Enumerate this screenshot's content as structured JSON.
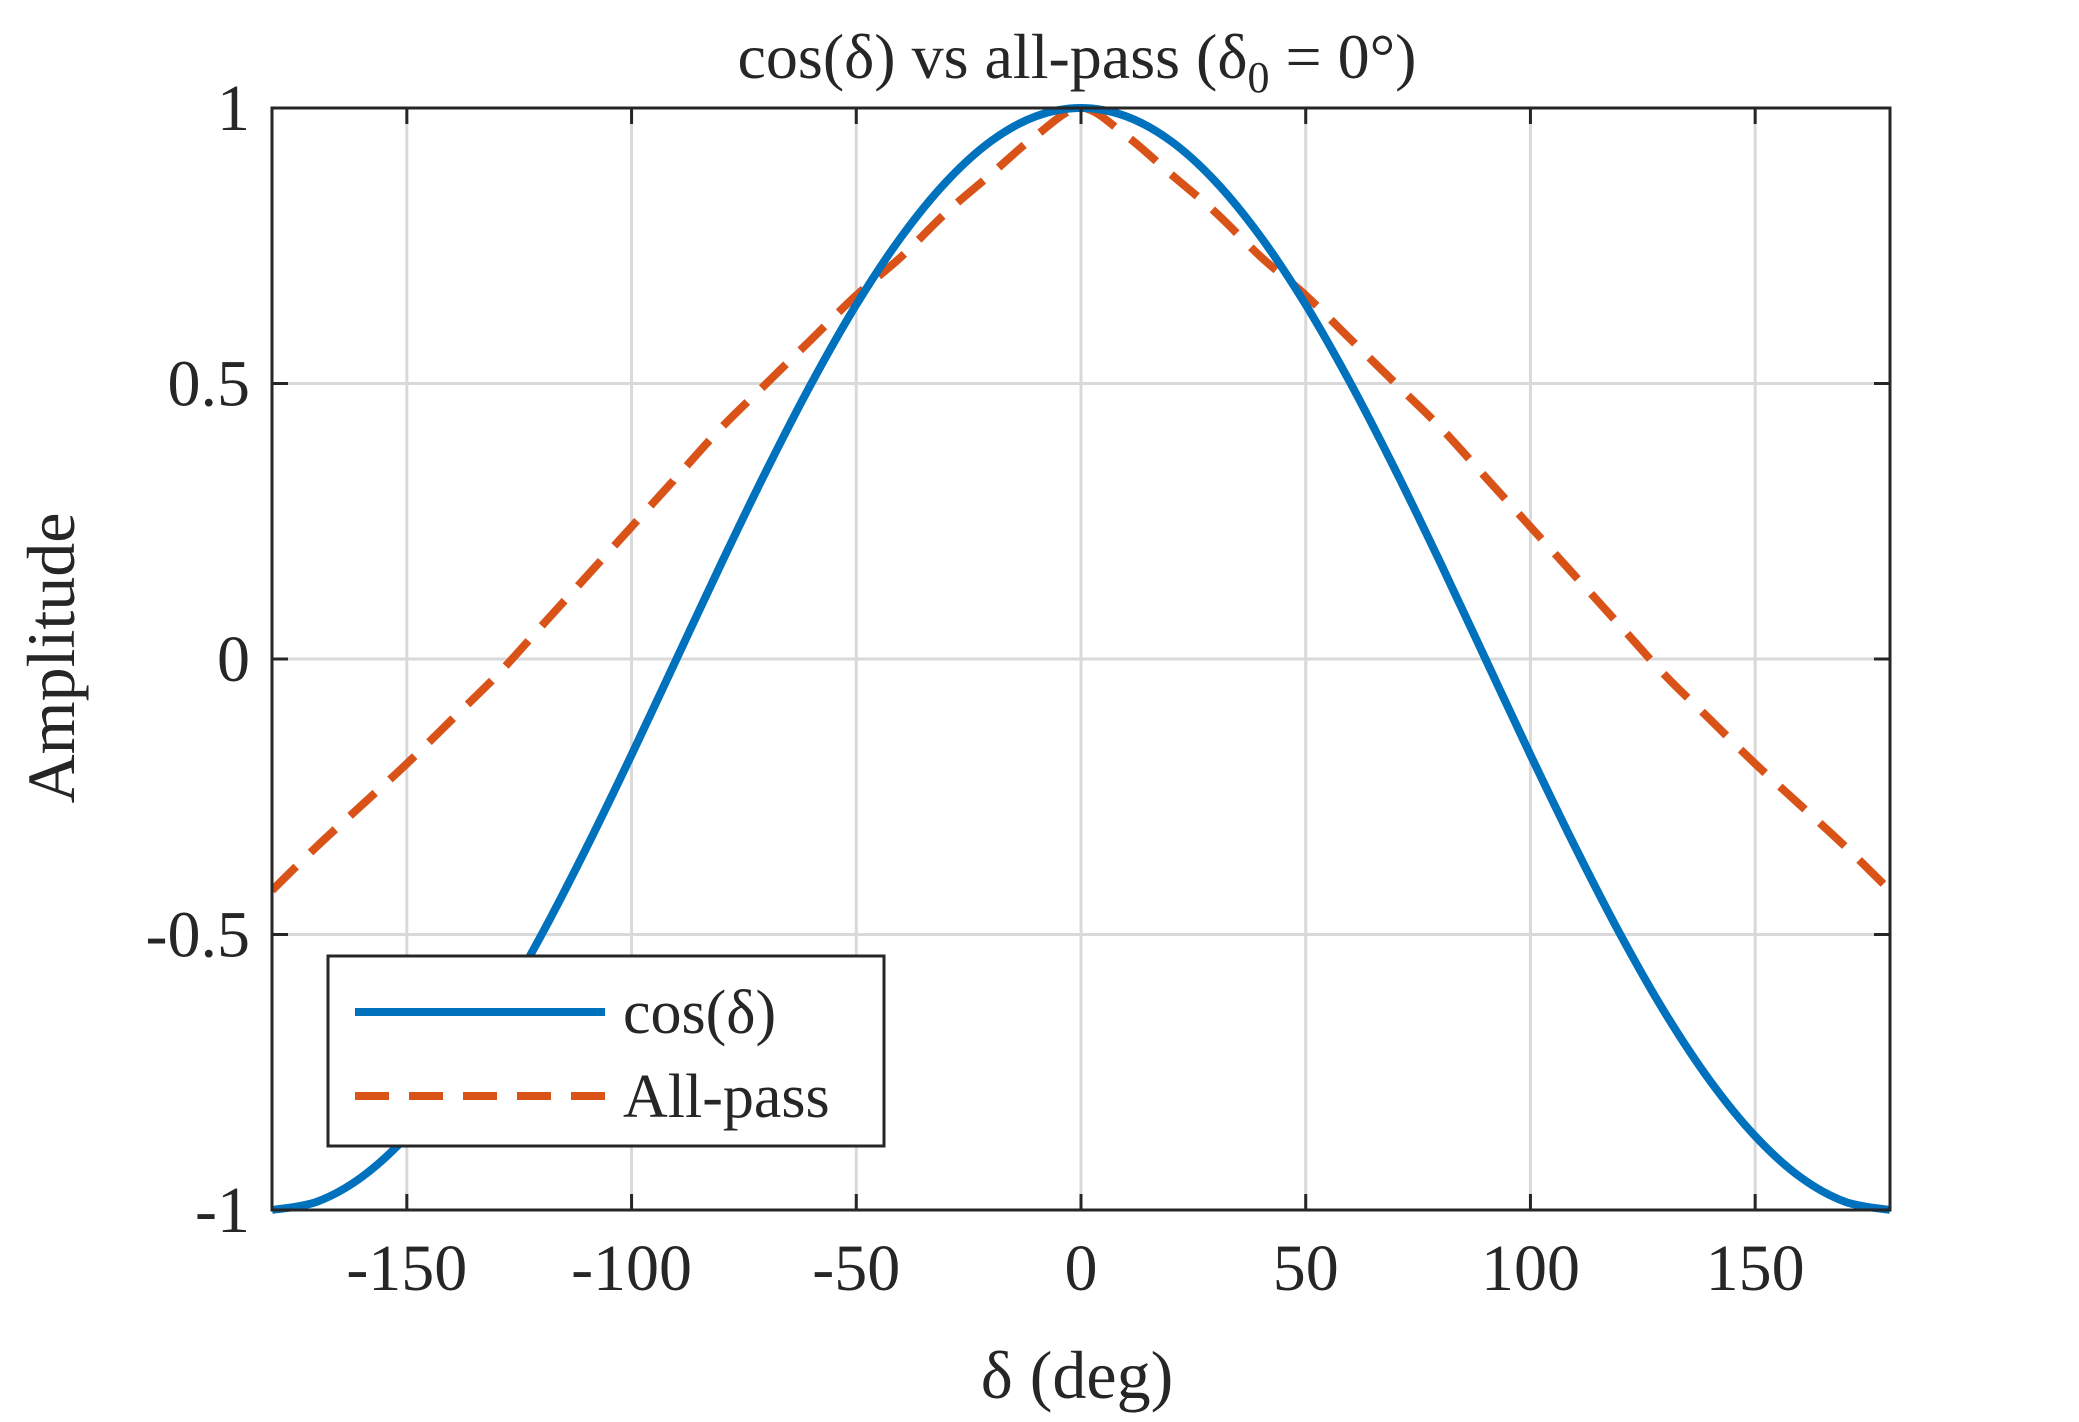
{
  "chart_data": {
    "type": "line",
    "title": "cos(δ) vs all-pass (δ₀ = 0°)",
    "title_parts": {
      "main": "cos(δ) vs all-pass (δ",
      "subscript": "0",
      "suffix": " = 0°)"
    },
    "xlabel": "δ (deg)",
    "ylabel": "Amplitude",
    "xlim": [
      -180,
      180
    ],
    "ylim": [
      -1,
      1
    ],
    "xticks": [
      -150,
      -100,
      -50,
      0,
      50,
      100,
      150
    ],
    "xtick_labels": [
      "-150",
      "-100",
      "-50",
      "0",
      "50",
      "100",
      "150"
    ],
    "yticks": [
      -1,
      -0.5,
      0,
      0.5,
      1
    ],
    "ytick_labels": [
      "-1",
      "-0.5",
      "0",
      "0.5",
      "1"
    ],
    "grid": true,
    "legend_position": "bottom-left",
    "x": [
      -180,
      -170,
      -160,
      -150,
      -140,
      -130,
      -120,
      -110,
      -100,
      -90,
      -80,
      -70,
      -60,
      -50,
      -40,
      -30,
      -20,
      -10,
      0,
      10,
      20,
      30,
      40,
      50,
      60,
      70,
      80,
      90,
      100,
      110,
      120,
      130,
      140,
      150,
      160,
      170,
      180
    ],
    "series": [
      {
        "name": "cos(δ)",
        "color": "#0072BD",
        "style": "solid",
        "values": [
          -1.0,
          -0.985,
          -0.94,
          -0.866,
          -0.766,
          -0.643,
          -0.5,
          -0.342,
          -0.174,
          0.0,
          0.174,
          0.342,
          0.5,
          0.643,
          0.766,
          0.866,
          0.94,
          0.985,
          1.0,
          0.985,
          0.94,
          0.866,
          0.766,
          0.643,
          0.5,
          0.342,
          0.174,
          0.0,
          -0.174,
          -0.342,
          -0.5,
          -0.643,
          -0.766,
          -0.866,
          -0.94,
          -0.985,
          -1.0
        ]
      },
      {
        "name": "All-pass",
        "color": "#D95319",
        "style": "dashed",
        "values": [
          -0.42,
          -0.34,
          -0.265,
          -0.19,
          -0.11,
          -0.03,
          0.06,
          0.15,
          0.24,
          0.33,
          0.42,
          0.5,
          0.58,
          0.66,
          0.73,
          0.81,
          0.88,
          0.95,
          1.0,
          0.95,
          0.88,
          0.81,
          0.73,
          0.66,
          0.58,
          0.5,
          0.42,
          0.33,
          0.24,
          0.15,
          0.06,
          -0.03,
          -0.11,
          -0.19,
          -0.265,
          -0.34,
          -0.42
        ]
      }
    ]
  }
}
